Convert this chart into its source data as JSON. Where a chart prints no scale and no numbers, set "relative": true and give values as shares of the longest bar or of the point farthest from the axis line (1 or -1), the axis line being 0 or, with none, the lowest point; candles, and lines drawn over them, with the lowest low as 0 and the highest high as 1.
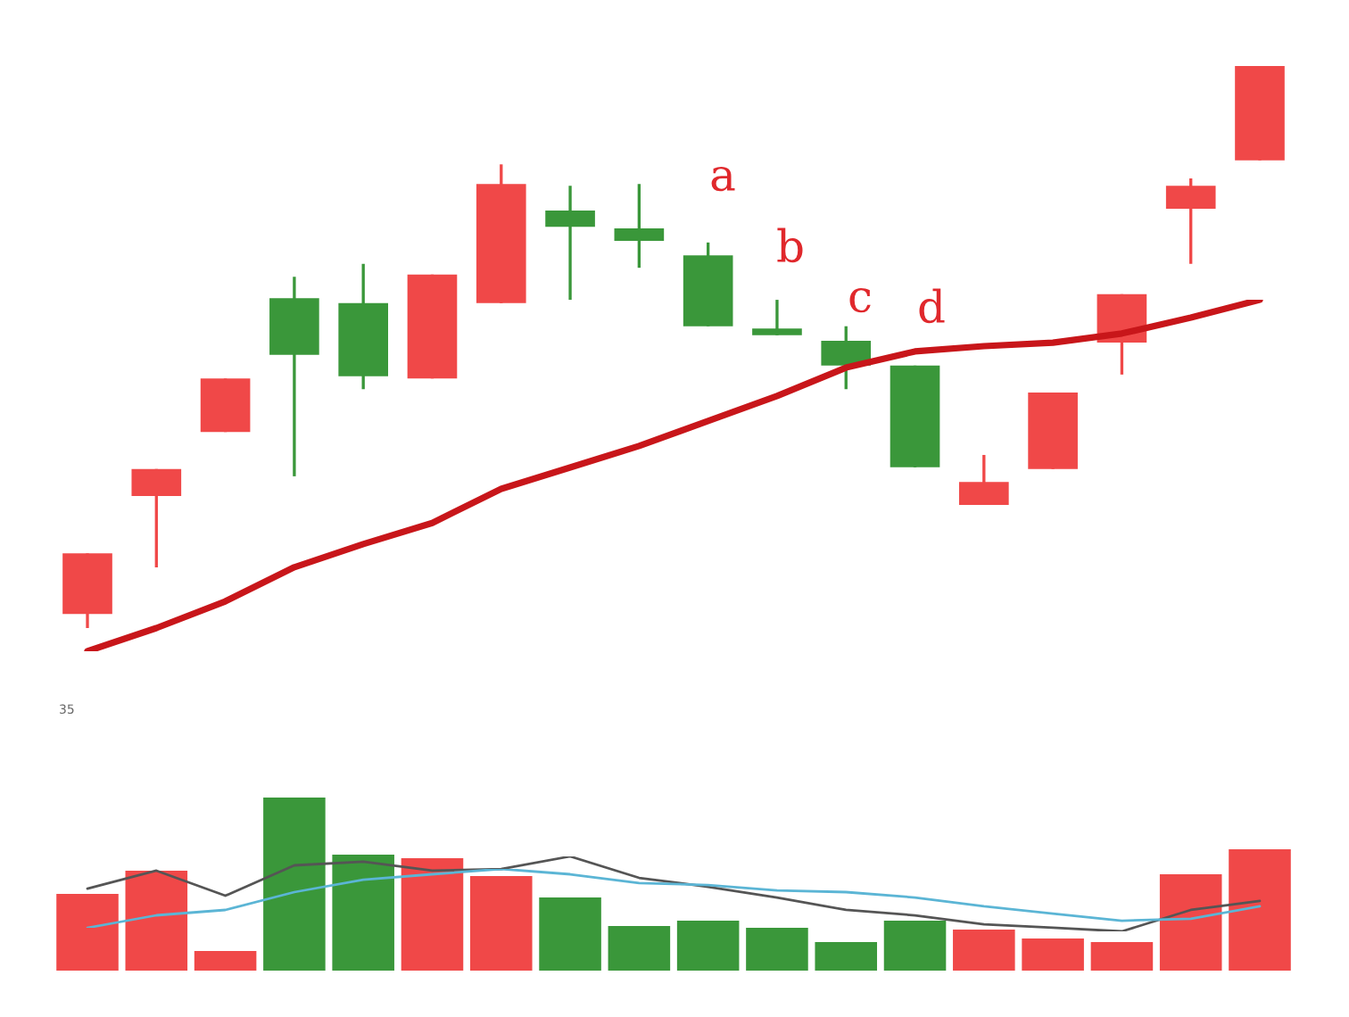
{
  "chart_data": [
    {
      "type": "candlestick",
      "relative": true,
      "categories": [
        null,
        null,
        null,
        null,
        null,
        null,
        null,
        null,
        null,
        null,
        null,
        null,
        null,
        null,
        null,
        null,
        null,
        null
      ],
      "ohlc": [
        [
          0.025,
          0.133,
          0,
          0.133
        ],
        [
          0.235,
          0.283,
          0.108,
          0.283
        ],
        [
          0.349,
          0.444,
          0.349,
          0.444
        ],
        [
          0.587,
          0.625,
          0.27,
          0.486
        ],
        [
          0.578,
          0.648,
          0.425,
          0.448
        ],
        [
          0.444,
          0.629,
          0.444,
          0.629
        ],
        [
          0.578,
          0.825,
          0.578,
          0.79
        ],
        [
          0.743,
          0.787,
          0.584,
          0.714
        ],
        [
          0.711,
          0.79,
          0.641,
          0.689
        ],
        [
          0.663,
          0.686,
          0.537,
          0.537
        ],
        [
          0.533,
          0.584,
          0.521,
          0.521
        ],
        [
          0.511,
          0.537,
          0.425,
          0.467
        ],
        [
          0.467,
          0.467,
          0.286,
          0.286
        ],
        [
          0.219,
          0.308,
          0.219,
          0.26
        ],
        [
          0.283,
          0.419,
          0.283,
          0.419
        ],
        [
          0.508,
          0.594,
          0.451,
          0.594
        ],
        [
          0.746,
          0.8,
          0.648,
          0.787
        ],
        [
          0.832,
          1,
          0.832,
          1
        ]
      ],
      "colors": [
        "#f04848",
        "#f04848",
        "#f04848",
        "#3a973a",
        "#3a973a",
        "#f04848",
        "#f04848",
        "#3a973a",
        "#3a973a",
        "#3a973a",
        "#3a973a",
        "#3a973a",
        "#3a973a",
        "#f04848",
        "#f04848",
        "#f04848",
        "#f04848",
        "#f04848"
      ],
      "annotations": [
        "a",
        "b",
        "c",
        "d",
        "35"
      ]
    },
    {
      "type": "line",
      "relative": true,
      "categories": [
        null,
        null,
        null,
        null,
        null,
        null,
        null,
        null,
        null,
        null,
        null,
        null,
        null,
        null,
        null,
        null,
        null,
        null
      ],
      "series": [
        {
          "color": "#c8161a",
          "values": [
            0,
            0.066,
            0.142,
            0.239,
            0.305,
            0.365,
            0.462,
            0.523,
            0.584,
            0.655,
            0.726,
            0.807,
            0.853,
            0.868,
            0.878,
            0.904,
            0.949,
            1
          ]
        }
      ]
    },
    {
      "type": "bar",
      "relative": true,
      "categories": [
        null,
        null,
        null,
        null,
        null,
        null,
        null,
        null,
        null,
        null,
        null,
        null,
        null,
        null,
        null,
        null,
        null,
        null
      ],
      "values": [
        0.443,
        0.577,
        0.113,
        1,
        0.67,
        0.649,
        0.546,
        0.423,
        0.258,
        0.289,
        0.247,
        0.165,
        0.289,
        0.237,
        0.186,
        0.165,
        0.557,
        0.701
      ],
      "colors": [
        "#f04848",
        "#f04848",
        "#f04848",
        "#3a973a",
        "#3a973a",
        "#f04848",
        "#f04848",
        "#3a973a",
        "#3a973a",
        "#3a973a",
        "#3a973a",
        "#3a973a",
        "#3a973a",
        "#f04848",
        "#f04848",
        "#f04848",
        "#f04848",
        "#f04848"
      ]
    },
    {
      "type": "line",
      "relative": true,
      "categories": [
        null,
        null,
        null,
        null,
        null,
        null,
        null,
        null,
        null,
        null,
        null,
        null,
        null,
        null,
        null,
        null,
        null,
        null
      ],
      "series": [
        {
          "color": "#555555",
          "values": [
            0.571,
            0.81,
            0.476,
            0.881,
            0.929,
            0.81,
            0.833,
            1,
            0.714,
            0.595,
            0.452,
            0.286,
            0.214,
            0.095,
            0.048,
            0,
            0.286,
            0.405
          ]
        }
      ]
    },
    {
      "type": "line",
      "relative": true,
      "categories": [
        null,
        null,
        null,
        null,
        null,
        null,
        null,
        null,
        null,
        null,
        null,
        null,
        null,
        null,
        null,
        null,
        null,
        null
      ],
      "series": [
        {
          "color": "#5bb5d5",
          "values": [
            0,
            0.212,
            0.303,
            0.606,
            0.818,
            0.909,
            1,
            0.909,
            0.758,
            0.727,
            0.636,
            0.606,
            0.515,
            0.364,
            0.242,
            0.121,
            0.152,
            0.364
          ]
        }
      ]
    }
  ]
}
